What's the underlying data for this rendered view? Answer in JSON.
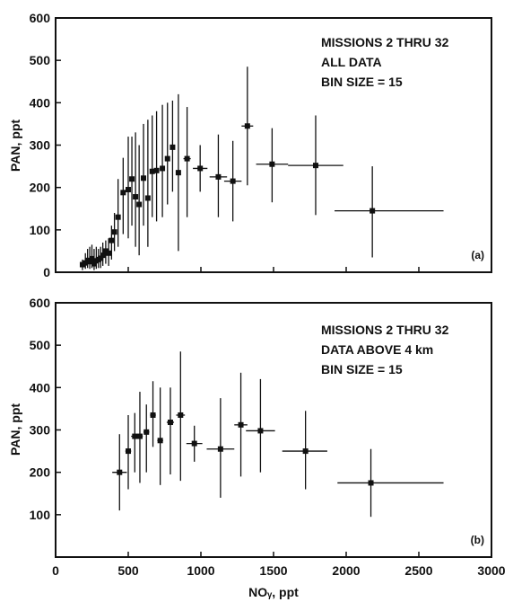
{
  "chart_data": [
    {
      "type": "scatter",
      "panel_label": "(a)",
      "annotation": [
        "MISSIONS 2 THRU 32",
        "ALL DATA",
        "BIN SIZE = 15"
      ],
      "xlabel": "",
      "ylabel": "PAN, ppt",
      "xlim": [
        0,
        3000
      ],
      "ylim": [
        0,
        600
      ],
      "x_ticks": [
        0,
        500,
        1000,
        1500,
        2000,
        2500,
        3000
      ],
      "y_ticks": [
        0,
        100,
        200,
        300,
        400,
        500,
        600
      ],
      "x_tick_labels_visible": false,
      "grid": false,
      "marker": "square",
      "error_bars": "x and y",
      "points": [
        {
          "x": 185,
          "y": 18,
          "xlo": 175,
          "xhi": 195,
          "ylo": 5,
          "yhi": 30
        },
        {
          "x": 205,
          "y": 22,
          "xlo": 195,
          "xhi": 215,
          "ylo": 8,
          "yhi": 45
        },
        {
          "x": 220,
          "y": 28,
          "xlo": 210,
          "xhi": 230,
          "ylo": 10,
          "yhi": 55
        },
        {
          "x": 235,
          "y": 25,
          "xlo": 225,
          "xhi": 245,
          "ylo": 8,
          "yhi": 60
        },
        {
          "x": 250,
          "y": 32,
          "xlo": 240,
          "xhi": 260,
          "ylo": 10,
          "yhi": 65
        },
        {
          "x": 265,
          "y": 20,
          "xlo": 255,
          "xhi": 275,
          "ylo": 5,
          "yhi": 55
        },
        {
          "x": 280,
          "y": 27,
          "xlo": 270,
          "xhi": 290,
          "ylo": 8,
          "yhi": 60
        },
        {
          "x": 295,
          "y": 30,
          "xlo": 285,
          "xhi": 305,
          "ylo": 10,
          "yhi": 55
        },
        {
          "x": 310,
          "y": 33,
          "xlo": 300,
          "xhi": 320,
          "ylo": 10,
          "yhi": 60
        },
        {
          "x": 325,
          "y": 40,
          "xlo": 315,
          "xhi": 335,
          "ylo": 15,
          "yhi": 70
        },
        {
          "x": 345,
          "y": 50,
          "xlo": 335,
          "xhi": 355,
          "ylo": 20,
          "yhi": 75
        },
        {
          "x": 365,
          "y": 45,
          "xlo": 355,
          "xhi": 375,
          "ylo": 15,
          "yhi": 80
        },
        {
          "x": 385,
          "y": 75,
          "xlo": 375,
          "xhi": 395,
          "ylo": 30,
          "yhi": 110
        },
        {
          "x": 405,
          "y": 95,
          "xlo": 395,
          "xhi": 415,
          "ylo": 50,
          "yhi": 140
        },
        {
          "x": 430,
          "y": 130,
          "xlo": 420,
          "xhi": 440,
          "ylo": 60,
          "yhi": 220
        },
        {
          "x": 465,
          "y": 188,
          "xlo": 455,
          "xhi": 475,
          "ylo": 90,
          "yhi": 270
        },
        {
          "x": 500,
          "y": 195,
          "xlo": 490,
          "xhi": 510,
          "ylo": 80,
          "yhi": 320
        },
        {
          "x": 525,
          "y": 220,
          "xlo": 515,
          "xhi": 535,
          "ylo": 110,
          "yhi": 320
        },
        {
          "x": 550,
          "y": 178,
          "xlo": 540,
          "xhi": 560,
          "ylo": 60,
          "yhi": 330
        },
        {
          "x": 575,
          "y": 160,
          "xlo": 565,
          "xhi": 585,
          "ylo": 40,
          "yhi": 300
        },
        {
          "x": 605,
          "y": 222,
          "xlo": 595,
          "xhi": 615,
          "ylo": 110,
          "yhi": 350
        },
        {
          "x": 635,
          "y": 175,
          "xlo": 625,
          "xhi": 645,
          "ylo": 60,
          "yhi": 360
        },
        {
          "x": 665,
          "y": 238,
          "xlo": 655,
          "xhi": 675,
          "ylo": 130,
          "yhi": 370
        },
        {
          "x": 695,
          "y": 240,
          "xlo": 685,
          "xhi": 705,
          "ylo": 120,
          "yhi": 380
        },
        {
          "x": 735,
          "y": 245,
          "xlo": 725,
          "xhi": 745,
          "ylo": 130,
          "yhi": 395
        },
        {
          "x": 770,
          "y": 268,
          "xlo": 760,
          "xhi": 780,
          "ylo": 160,
          "yhi": 400
        },
        {
          "x": 805,
          "y": 295,
          "xlo": 795,
          "xhi": 815,
          "ylo": 190,
          "yhi": 405
        },
        {
          "x": 845,
          "y": 235,
          "xlo": 835,
          "xhi": 855,
          "ylo": 50,
          "yhi": 420
        },
        {
          "x": 905,
          "y": 268,
          "xlo": 880,
          "xhi": 930,
          "ylo": 130,
          "yhi": 390
        },
        {
          "x": 995,
          "y": 245,
          "xlo": 945,
          "xhi": 1045,
          "ylo": 190,
          "yhi": 300
        },
        {
          "x": 1120,
          "y": 225,
          "xlo": 1060,
          "xhi": 1180,
          "ylo": 130,
          "yhi": 325
        },
        {
          "x": 1220,
          "y": 215,
          "xlo": 1160,
          "xhi": 1280,
          "ylo": 120,
          "yhi": 310
        },
        {
          "x": 1320,
          "y": 345,
          "xlo": 1280,
          "xhi": 1360,
          "ylo": 205,
          "yhi": 485
        },
        {
          "x": 1490,
          "y": 255,
          "xlo": 1380,
          "xhi": 1600,
          "ylo": 165,
          "yhi": 340
        },
        {
          "x": 1790,
          "y": 252,
          "xlo": 1600,
          "xhi": 1980,
          "ylo": 135,
          "yhi": 370
        },
        {
          "x": 2180,
          "y": 145,
          "xlo": 1920,
          "xhi": 2670,
          "ylo": 35,
          "yhi": 250
        }
      ]
    },
    {
      "type": "scatter",
      "panel_label": "(b)",
      "annotation": [
        "MISSIONS 2 THRU 32",
        "DATA ABOVE 4 km",
        "BIN SIZE = 15"
      ],
      "xlabel": "NOᵧ, ppt",
      "ylabel": "PAN, ppt",
      "xlim": [
        0,
        3000
      ],
      "ylim": [
        0,
        600
      ],
      "x_ticks": [
        0,
        500,
        1000,
        1500,
        2000,
        2500,
        3000
      ],
      "y_ticks": [
        100,
        200,
        300,
        400,
        500,
        600
      ],
      "x_tick_labels_visible": true,
      "grid": false,
      "marker": "square",
      "error_bars": "x and y",
      "points": [
        {
          "x": 440,
          "y": 200,
          "xlo": 390,
          "xhi": 490,
          "ylo": 110,
          "yhi": 290
        },
        {
          "x": 500,
          "y": 250,
          "xlo": 480,
          "xhi": 520,
          "ylo": 160,
          "yhi": 335
        },
        {
          "x": 545,
          "y": 285,
          "xlo": 520,
          "xhi": 570,
          "ylo": 200,
          "yhi": 340
        },
        {
          "x": 580,
          "y": 285,
          "xlo": 560,
          "xhi": 600,
          "ylo": 175,
          "yhi": 390
        },
        {
          "x": 625,
          "y": 295,
          "xlo": 605,
          "xhi": 645,
          "ylo": 200,
          "yhi": 360
        },
        {
          "x": 670,
          "y": 335,
          "xlo": 650,
          "xhi": 690,
          "ylo": 260,
          "yhi": 415
        },
        {
          "x": 720,
          "y": 275,
          "xlo": 700,
          "xhi": 740,
          "ylo": 170,
          "yhi": 400
        },
        {
          "x": 790,
          "y": 318,
          "xlo": 765,
          "xhi": 815,
          "ylo": 195,
          "yhi": 400
        },
        {
          "x": 860,
          "y": 335,
          "xlo": 830,
          "xhi": 890,
          "ylo": 180,
          "yhi": 485
        },
        {
          "x": 955,
          "y": 268,
          "xlo": 900,
          "xhi": 1010,
          "ylo": 225,
          "yhi": 310
        },
        {
          "x": 1135,
          "y": 255,
          "xlo": 1040,
          "xhi": 1230,
          "ylo": 140,
          "yhi": 375
        },
        {
          "x": 1275,
          "y": 312,
          "xlo": 1230,
          "xhi": 1320,
          "ylo": 190,
          "yhi": 435
        },
        {
          "x": 1410,
          "y": 298,
          "xlo": 1310,
          "xhi": 1510,
          "ylo": 200,
          "yhi": 420
        },
        {
          "x": 1720,
          "y": 250,
          "xlo": 1560,
          "xhi": 1870,
          "ylo": 160,
          "yhi": 345
        },
        {
          "x": 2170,
          "y": 175,
          "xlo": 1940,
          "xhi": 2670,
          "ylo": 95,
          "yhi": 255
        }
      ]
    }
  ]
}
